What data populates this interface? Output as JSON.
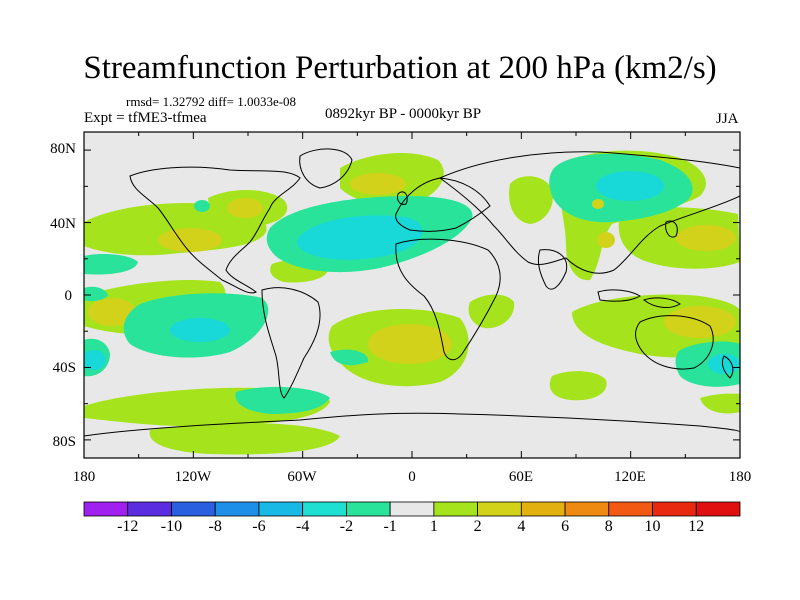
{
  "title": "Streamfunction Perturbation at 200 hPa (km2/s)",
  "stats": "rmsd= 1.32792 diff= 1.0033e-08",
  "experiment": "Expt = tfME3-tfmea",
  "period": "0892kyr BP - 0000kyr BP",
  "season": "JJA",
  "lat_labels": [
    "80N",
    "40N",
    "0",
    "40S",
    "80S"
  ],
  "lon_labels": [
    "180",
    "120W",
    "60W",
    "0",
    "60E",
    "120E",
    "180"
  ],
  "colorbar": {
    "labels": [
      "-12",
      "-10",
      "-8",
      "-6",
      "-4",
      "-2",
      "-1",
      "1",
      "2",
      "4",
      "6",
      "8",
      "10",
      "12"
    ],
    "colors": [
      "#a020f0",
      "#5a2ee0",
      "#2a5fe0",
      "#1e8fe8",
      "#19b9e6",
      "#1ee0d2",
      "#2ae39a",
      "#e8e8e8",
      "#a5e41c",
      "#d2d21a",
      "#e2b00f",
      "#ee8a12",
      "#f25a14",
      "#e8280f",
      "#e01010"
    ]
  },
  "colors": {
    "background": "#e8e8e8",
    "neg1": "#2ae39a",
    "neg2": "#19d8d8",
    "pos1": "#a5e41c",
    "pos2": "#d2d21a"
  }
}
